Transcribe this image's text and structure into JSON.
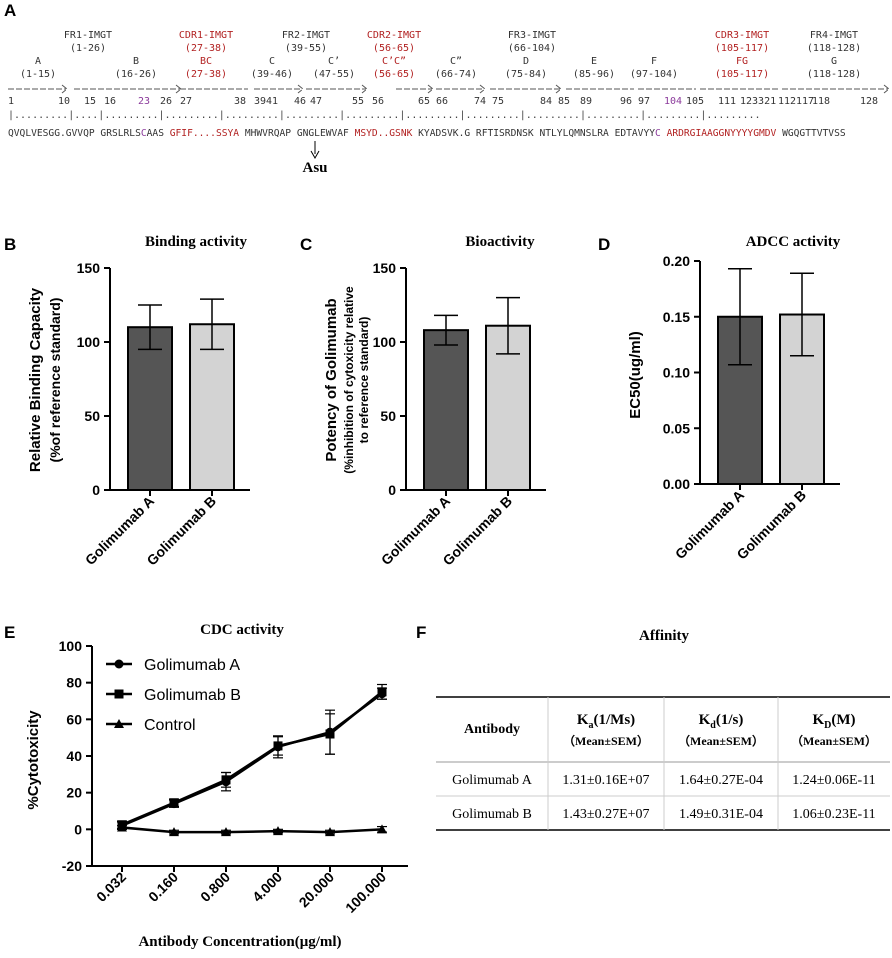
{
  "panels": {
    "a": "A",
    "b": "B",
    "c": "C",
    "d": "D",
    "e": "E",
    "f": "F"
  },
  "sequence": {
    "regions": [
      {
        "name": "FR1-IMGT",
        "range": "(1-26)",
        "color": "#333333"
      },
      {
        "name": "CDR1-IMGT",
        "range": "(27-38)",
        "color": "#b22222"
      },
      {
        "name": "FR2-IMGT",
        "range": "(39-55)",
        "color": "#333333"
      },
      {
        "name": "CDR2-IMGT",
        "range": "(56-65)",
        "color": "#b22222"
      },
      {
        "name": "FR3-IMGT",
        "range": "(66-104)",
        "color": "#333333"
      },
      {
        "name": "CDR3-IMGT",
        "range": "(105-117)",
        "color": "#b22222"
      },
      {
        "name": "FR4-IMGT",
        "range": "(118-128)",
        "color": "#333333"
      }
    ],
    "strands": [
      {
        "name": "A",
        "range": "(1-15)",
        "color": "#333333"
      },
      {
        "name": "B",
        "range": "(16-26)",
        "color": "#333333"
      },
      {
        "name": "BC",
        "range": "(27-38)",
        "color": "#b22222"
      },
      {
        "name": "C",
        "range": "(39-46)",
        "color": "#333333"
      },
      {
        "name": "C’",
        "range": "(47-55)",
        "color": "#333333"
      },
      {
        "name": "C’C”",
        "range": "(56-65)",
        "color": "#b22222"
      },
      {
        "name": "C”",
        "range": "(66-74)",
        "color": "#333333"
      },
      {
        "name": "D",
        "range": "(75-84)",
        "color": "#333333"
      },
      {
        "name": "E",
        "range": "(85-96)",
        "color": "#333333"
      },
      {
        "name": "F",
        "range": "(97-104)",
        "color": "#333333"
      },
      {
        "name": "FG",
        "range": "(105-117)",
        "color": "#b22222"
      },
      {
        "name": "G",
        "range": "(118-128)",
        "color": "#333333"
      }
    ],
    "positions": [
      {
        "label": "1",
        "color": "#333333"
      },
      {
        "label": "10",
        "color": "#333333"
      },
      {
        "label": "15",
        "color": "#333333"
      },
      {
        "label": "16",
        "color": "#333333"
      },
      {
        "label": "23",
        "color": "#8b3a9b"
      },
      {
        "label": "26",
        "color": "#333333"
      },
      {
        "label": "27",
        "color": "#333333"
      },
      {
        "label": "38",
        "color": "#333333"
      },
      {
        "label": "3941",
        "color": "#333333"
      },
      {
        "label": "46",
        "color": "#333333"
      },
      {
        "label": "47",
        "color": "#333333"
      },
      {
        "label": "55",
        "color": "#333333"
      },
      {
        "label": "56",
        "color": "#333333"
      },
      {
        "label": "65",
        "color": "#333333"
      },
      {
        "label": "66",
        "color": "#333333"
      },
      {
        "label": "74",
        "color": "#333333"
      },
      {
        "label": "75",
        "color": "#333333"
      },
      {
        "label": "84",
        "color": "#333333"
      },
      {
        "label": "85",
        "color": "#333333"
      },
      {
        "label": "89",
        "color": "#333333"
      },
      {
        "label": "96",
        "color": "#333333"
      },
      {
        "label": "97",
        "color": "#333333"
      },
      {
        "label": "104",
        "color": "#8b3a9b"
      },
      {
        "label": "105",
        "color": "#333333"
      },
      {
        "label": "111",
        "color": "#333333"
      },
      {
        "label": "123321",
        "color": "#333333"
      },
      {
        "label": "112",
        "color": "#333333"
      },
      {
        "label": "117",
        "color": "#333333"
      },
      {
        "label": "118",
        "color": "#333333"
      },
      {
        "label": "128",
        "color": "#333333"
      }
    ],
    "residues": [
      {
        "text": "QVQLVESGG.GVVQP",
        "color": "#333333"
      },
      {
        "text": "GRSLRLS",
        "color": "#333333"
      },
      {
        "text": "C",
        "color": "#8b3a9b"
      },
      {
        "text": "AAS",
        "color": "#333333"
      },
      {
        "text": "GFIF....SSYA",
        "color": "#b22222"
      },
      {
        "text": "MHWVRQAP",
        "color": "#333333"
      },
      {
        "text": "GN",
        "color": "#333333"
      },
      {
        "text": "GLEWVAF",
        "color": "#333333"
      },
      {
        "text": "MSYD..GSNK",
        "color": "#b22222"
      },
      {
        "text": "KYADSVK.G",
        "color": "#333333"
      },
      {
        "text": "RFTISRDNSK",
        "color": "#333333"
      },
      {
        "text": "NTLYLQMNSLRA",
        "color": "#333333"
      },
      {
        "text": "EDTAVYY",
        "color": "#333333"
      },
      {
        "text": "C",
        "color": "#8b3a9b"
      },
      {
        "text": "ARDRGIAAGGNYYYYGMDV",
        "color": "#b22222"
      },
      {
        "text": "WGQGTTVTVSS",
        "color": "#333333"
      }
    ],
    "annotation": "Asu"
  },
  "chart_data": [
    {
      "panel": "B",
      "type": "bar",
      "title": "Binding activity",
      "ylabel_line1": "Relative Binding Capacity",
      "ylabel_line2": "(%of reference standard)",
      "categories": [
        "Golimumab A",
        "Golimumab B"
      ],
      "values": [
        110,
        112
      ],
      "errors": [
        15,
        17
      ],
      "colors": [
        "#555555",
        "#d3d3d3"
      ],
      "ylim": [
        0,
        150
      ],
      "yticks": [
        "0",
        "50",
        "100",
        "150"
      ]
    },
    {
      "panel": "C",
      "type": "bar",
      "title": "Bioactivity",
      "ylabel_line1": "Potency of Golimumab",
      "ylabel_line2": "(%inhibition of cytoxicity relative",
      "ylabel_line3": "to reference standard)",
      "categories": [
        "Golimumab A",
        "Golimumab B"
      ],
      "values": [
        108,
        111
      ],
      "errors": [
        10,
        19
      ],
      "colors": [
        "#555555",
        "#d3d3d3"
      ],
      "ylim": [
        0,
        150
      ],
      "yticks": [
        "0",
        "50",
        "100",
        "150"
      ]
    },
    {
      "panel": "D",
      "type": "bar",
      "title": "ADCC activity",
      "ylabel_line1": "EC50(ug/ml)",
      "categories": [
        "Golimumab A",
        "Golimumab B"
      ],
      "values": [
        0.15,
        0.152
      ],
      "errors": [
        0.043,
        0.037
      ],
      "colors": [
        "#555555",
        "#d3d3d3"
      ],
      "ylim": [
        0,
        0.2
      ],
      "yticks": [
        "0.00",
        "0.05",
        "0.10",
        "0.15",
        "0.20"
      ]
    },
    {
      "panel": "E",
      "type": "line",
      "title": "CDC activity",
      "xlabel": "Antibody Concentration(μg/ml)",
      "ylabel": "%Cytotoxicity",
      "x": [
        "0.032",
        "0.160",
        "0.800",
        "4.000",
        "20.000",
        "100.000"
      ],
      "ylim": [
        -20,
        100
      ],
      "yticks": [
        "-20",
        "0",
        "20",
        "40",
        "60",
        "80",
        "100"
      ],
      "series": [
        {
          "name": "Golimumab A",
          "marker": "circle",
          "values": [
            2,
            14,
            26,
            45,
            53,
            74
          ],
          "errors": [
            2,
            2,
            5,
            6,
            12,
            3
          ]
        },
        {
          "name": "Golimumab B",
          "marker": "square",
          "values": [
            2.5,
            14.5,
            27,
            45.5,
            52,
            75
          ],
          "errors": [
            2,
            2,
            4,
            5,
            11,
            4
          ]
        },
        {
          "name": "Control",
          "marker": "triangle",
          "values": [
            1,
            -1.5,
            -1.5,
            -1,
            -1.5,
            0
          ],
          "errors": [
            1,
            1,
            1,
            1,
            1,
            1.5
          ]
        }
      ]
    }
  ],
  "affinity": {
    "title": "Affinity",
    "header_antibody": "Antibody",
    "columns": [
      {
        "symbol": "K",
        "sub": "a",
        "unit": "(1/Ms)",
        "stat": "（Mean±SEM）"
      },
      {
        "symbol": "K",
        "sub": "d",
        "unit": "(1/s)",
        "stat": "（Mean±SEM）"
      },
      {
        "symbol": "K",
        "sub": "D",
        "unit": "(M)",
        "stat": "（Mean±SEM）"
      }
    ],
    "rows": [
      {
        "antibody": "Golimumab A",
        "ka": "1.31±0.16E+07",
        "kd": "1.64±0.27E-04",
        "kD": "1.24±0.06E-11"
      },
      {
        "antibody": "Golimumab B",
        "ka": "1.43±0.27E+07",
        "kd": "1.49±0.31E-04",
        "kD": "1.06±0.23E-11"
      }
    ]
  }
}
